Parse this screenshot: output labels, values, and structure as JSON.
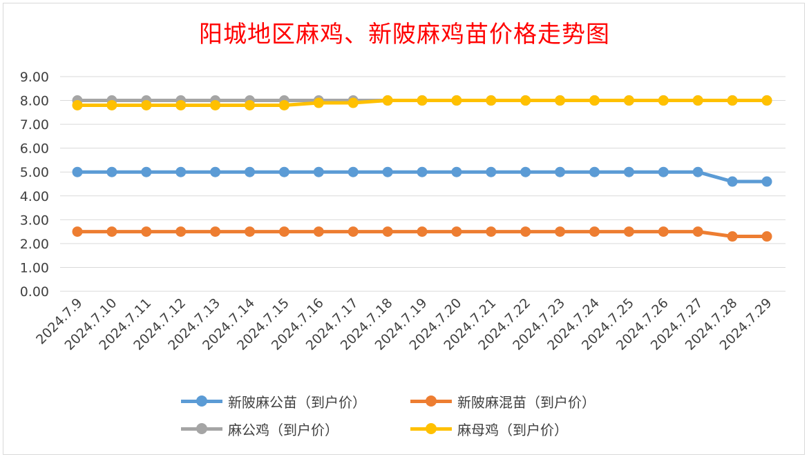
{
  "chart_data": {
    "type": "line",
    "title": "阳城地区麻鸡、新陂麻鸡苗价格走势图",
    "xlabel": "",
    "ylabel": "",
    "ylim": [
      0,
      9
    ],
    "yticks": [
      "0.00",
      "1.00",
      "2.00",
      "3.00",
      "4.00",
      "5.00",
      "6.00",
      "7.00",
      "8.00",
      "9.00"
    ],
    "categories": [
      "2024.7.9",
      "2024.7.10",
      "2024.7.11",
      "2024.7.12",
      "2024.7.13",
      "2024.7.14",
      "2024.7.15",
      "2024.7.16",
      "2024.7.17",
      "2024.7.18",
      "2024.7.19",
      "2024.7.20",
      "2024.7.21",
      "2024.7.22",
      "2024.7.23",
      "2024.7.24",
      "2024.7.25",
      "2024.7.26",
      "2024.7.27",
      "2024.7.28",
      "2024.7.29"
    ],
    "grid": true,
    "legend_position": "bottom",
    "series": [
      {
        "name": "新陂麻公苗（到户价）",
        "color": "#5b9bd5",
        "values": [
          5.0,
          5.0,
          5.0,
          5.0,
          5.0,
          5.0,
          5.0,
          5.0,
          5.0,
          5.0,
          5.0,
          5.0,
          5.0,
          5.0,
          5.0,
          5.0,
          5.0,
          5.0,
          5.0,
          4.6,
          4.6
        ]
      },
      {
        "name": "新陂麻混苗（到户价）",
        "color": "#ed7d31",
        "values": [
          2.5,
          2.5,
          2.5,
          2.5,
          2.5,
          2.5,
          2.5,
          2.5,
          2.5,
          2.5,
          2.5,
          2.5,
          2.5,
          2.5,
          2.5,
          2.5,
          2.5,
          2.5,
          2.5,
          2.3,
          2.3
        ]
      },
      {
        "name": "麻公鸡（到户价）",
        "color": "#a5a5a5",
        "values": [
          8.0,
          8.0,
          8.0,
          8.0,
          8.0,
          8.0,
          8.0,
          8.0,
          8.0,
          8.0,
          8.0,
          8.0,
          8.0,
          8.0,
          8.0,
          8.0,
          8.0,
          8.0,
          8.0,
          8.0,
          8.0
        ]
      },
      {
        "name": "麻母鸡（到户价）",
        "color": "#ffc000",
        "values": [
          7.8,
          7.8,
          7.8,
          7.8,
          7.8,
          7.8,
          7.8,
          7.9,
          7.9,
          8.0,
          8.0,
          8.0,
          8.0,
          8.0,
          8.0,
          8.0,
          8.0,
          8.0,
          8.0,
          8.0,
          8.0
        ]
      }
    ]
  }
}
